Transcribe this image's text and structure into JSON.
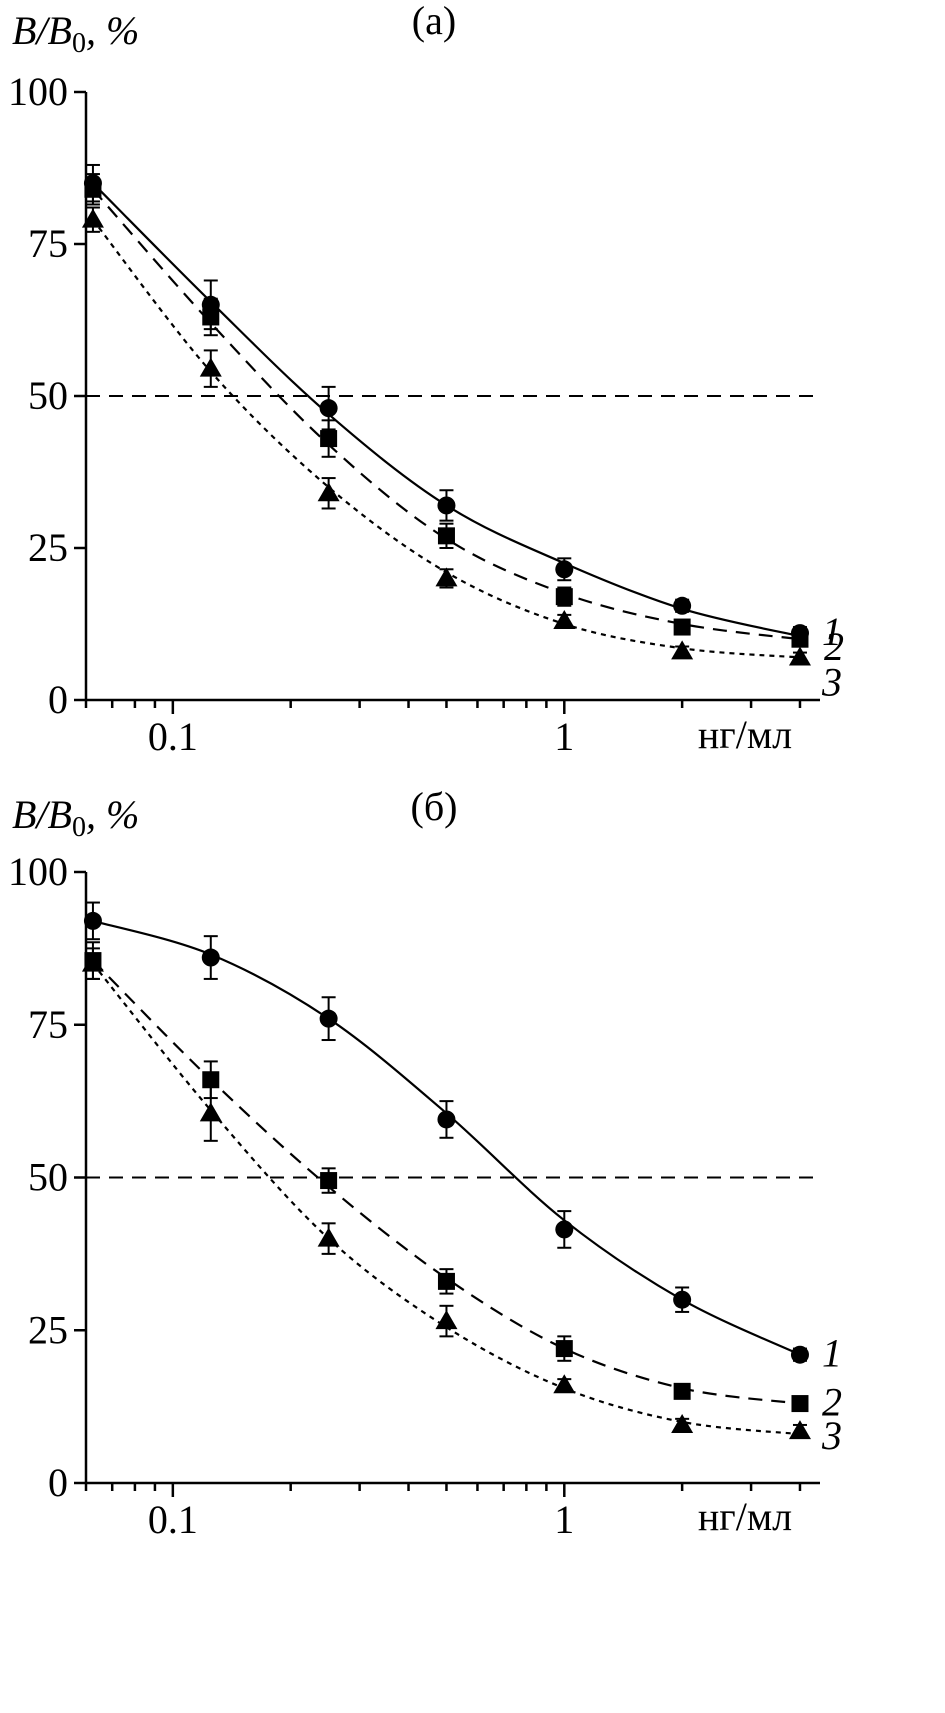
{
  "chart_data": [
    {
      "type": "scatter",
      "title": "(a)",
      "ylabel_main": "B/B",
      "ylabel_sub": "0",
      "ylabel_suffix": ", %",
      "xlabel": "нг/мл",
      "xscale": "log",
      "xlim": [
        0.06,
        4.5
      ],
      "ylim": [
        0,
        100
      ],
      "yticks": [
        0,
        25,
        50,
        75,
        100
      ],
      "ytick_labels": [
        "0",
        "25",
        "50",
        "75",
        "100"
      ],
      "xticks": [
        0.1,
        1
      ],
      "xtick_labels": [
        "0.1",
        "1"
      ],
      "reference_line": 50,
      "x": [
        0.0625,
        0.125,
        0.25,
        0.5,
        1,
        2,
        4
      ],
      "series": [
        {
          "name": "1",
          "label": "1",
          "marker": "circle",
          "line": "solid",
          "values": [
            85,
            65,
            48,
            32,
            21.5,
            15.5,
            11
          ],
          "errors": [
            3,
            4,
            3.5,
            2.5,
            1.8,
            1,
            1
          ],
          "fit": [
            85,
            65.5,
            47,
            32,
            22.5,
            15,
            10.5
          ]
        },
        {
          "name": "2",
          "label": "2",
          "marker": "square",
          "line": "dashed",
          "values": [
            84,
            63,
            43,
            27,
            17,
            12,
            10
          ],
          "errors": [
            2.5,
            3,
            3,
            2,
            1.5,
            1,
            1
          ],
          "fit": [
            84,
            62,
            42,
            26.5,
            17.5,
            12.5,
            10
          ]
        },
        {
          "name": "3",
          "label": "3",
          "marker": "triangle",
          "line": "dotted",
          "values": [
            79,
            54.5,
            34,
            20,
            13,
            8,
            7
          ],
          "errors": [
            2,
            3,
            2.5,
            1.5,
            1,
            0.8,
            0.8
          ],
          "fit": [
            79,
            54,
            35,
            21,
            12.5,
            8.5,
            7
          ]
        }
      ]
    },
    {
      "type": "scatter",
      "title": "(б)",
      "ylabel_main": "B/B",
      "ylabel_sub": "0",
      "ylabel_suffix": ", %",
      "xlabel": "нг/мл",
      "xscale": "log",
      "xlim": [
        0.06,
        4.5
      ],
      "ylim": [
        0,
        100
      ],
      "yticks": [
        0,
        25,
        50,
        75,
        100
      ],
      "ytick_labels": [
        "0",
        "25",
        "50",
        "75",
        "100"
      ],
      "xticks": [
        0.1,
        1
      ],
      "xtick_labels": [
        "0.1",
        "1"
      ],
      "reference_line": 50,
      "x": [
        0.0625,
        0.125,
        0.25,
        0.5,
        1,
        2,
        4
      ],
      "series": [
        {
          "name": "1",
          "label": "1",
          "marker": "circle",
          "line": "solid",
          "values": [
            92,
            86,
            76,
            59.5,
            41.5,
            30,
            21
          ],
          "errors": [
            3,
            3.5,
            3.5,
            3,
            3,
            2,
            1
          ],
          "fit": [
            92,
            86.5,
            76,
            60.5,
            43,
            30,
            21
          ]
        },
        {
          "name": "2",
          "label": "2",
          "marker": "square",
          "line": "dashed",
          "values": [
            85.5,
            66,
            49.5,
            33,
            22,
            15,
            13
          ],
          "errors": [
            3,
            3,
            2,
            2,
            2,
            1,
            1
          ],
          "fit": [
            85.5,
            66,
            48.5,
            33.5,
            22,
            15.5,
            13
          ]
        },
        {
          "name": "3",
          "label": "3",
          "marker": "triangle",
          "line": "dotted",
          "values": [
            85,
            60.5,
            40,
            26.5,
            16,
            9.5,
            8.5
          ],
          "errors": [
            2.5,
            4.5,
            2.5,
            2.5,
            1,
            1,
            1
          ],
          "fit": [
            85,
            61,
            40,
            25.5,
            15.5,
            10,
            8
          ]
        }
      ]
    }
  ]
}
